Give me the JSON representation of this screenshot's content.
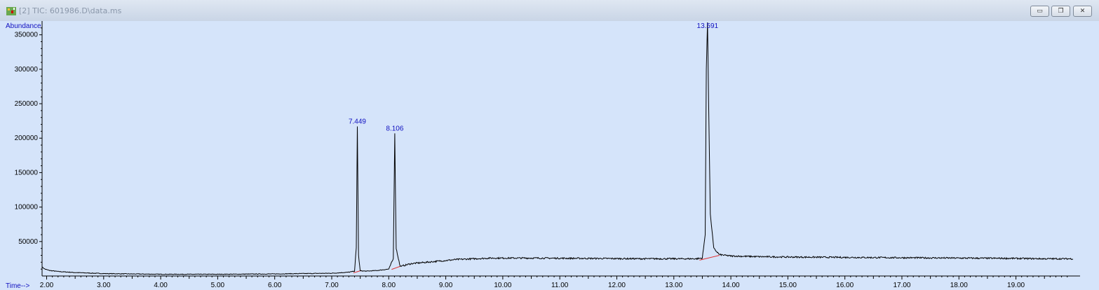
{
  "window": {
    "title": "[2] TIC: 601986.D\\data.ms",
    "controls": [
      "minimize-icon",
      "restore-icon",
      "close-icon"
    ]
  },
  "colors": {
    "plot_bg": "#d5e4fa",
    "trace": "#000000",
    "baseline": "#e03030",
    "labels": "#1010c0"
  },
  "chart_data": {
    "type": "line",
    "title": "",
    "xlabel": "Time-->",
    "ylabel": "Abundance",
    "xlim": [
      1.92,
      20.1
    ],
    "ylim": [
      0,
      370000
    ],
    "x_ticks": [
      "2.00",
      "3.00",
      "4.00",
      "5.00",
      "6.00",
      "7.00",
      "8.00",
      "9.00",
      "10.00",
      "11.00",
      "12.00",
      "13.00",
      "14.00",
      "15.00",
      "16.00",
      "17.00",
      "18.00",
      "19.00"
    ],
    "y_ticks": [
      "50000",
      "100000",
      "150000",
      "200000",
      "250000",
      "300000",
      "350000"
    ],
    "grid": false,
    "series": [
      {
        "x": [
          1.92,
          1.97,
          2.05,
          2.2,
          2.5,
          3.0,
          4.0,
          5.0,
          6.0,
          6.5,
          7.0,
          7.3,
          7.4,
          7.43,
          7.449,
          7.47,
          7.5,
          7.6,
          7.8,
          8.0,
          8.08,
          8.106,
          8.13,
          8.2,
          8.4,
          8.8,
          9.2,
          9.8,
          10.5,
          11.5,
          12.5,
          13.0,
          13.4,
          13.5,
          13.55,
          13.57,
          13.591,
          13.61,
          13.64,
          13.7,
          13.8,
          14.0,
          14.5,
          15.0,
          16.0,
          17.0,
          18.0,
          19.0,
          19.5,
          20.0
        ],
        "y": [
          13000,
          10000,
          8000,
          6500,
          5000,
          3500,
          2500,
          2500,
          3000,
          3500,
          4000,
          5500,
          7000,
          40000,
          217000,
          30000,
          7500,
          7000,
          8000,
          10000,
          25000,
          207000,
          40000,
          14000,
          18000,
          21000,
          24000,
          26000,
          26000,
          25500,
          25000,
          25000,
          25000,
          26000,
          60000,
          300000,
          368000,
          250000,
          90000,
          40000,
          31000,
          29000,
          28000,
          27500,
          27000,
          26500,
          26000,
          25500,
          25000,
          25000
        ]
      }
    ],
    "peaks": [
      {
        "rt": 7.449,
        "label": "7.449",
        "abundance": 217000
      },
      {
        "rt": 8.106,
        "label": "8.106",
        "abundance": 207000
      },
      {
        "rt": 13.591,
        "label": "13.591",
        "abundance": 368000
      }
    ],
    "integration_baselines": [
      {
        "x": [
          7.38,
          7.52
        ],
        "y": [
          4500,
          8000
        ]
      },
      {
        "x": [
          8.05,
          8.2
        ],
        "y": [
          9500,
          14000
        ]
      },
      {
        "x": [
          13.45,
          13.8
        ],
        "y": [
          23000,
          30000
        ]
      }
    ]
  }
}
